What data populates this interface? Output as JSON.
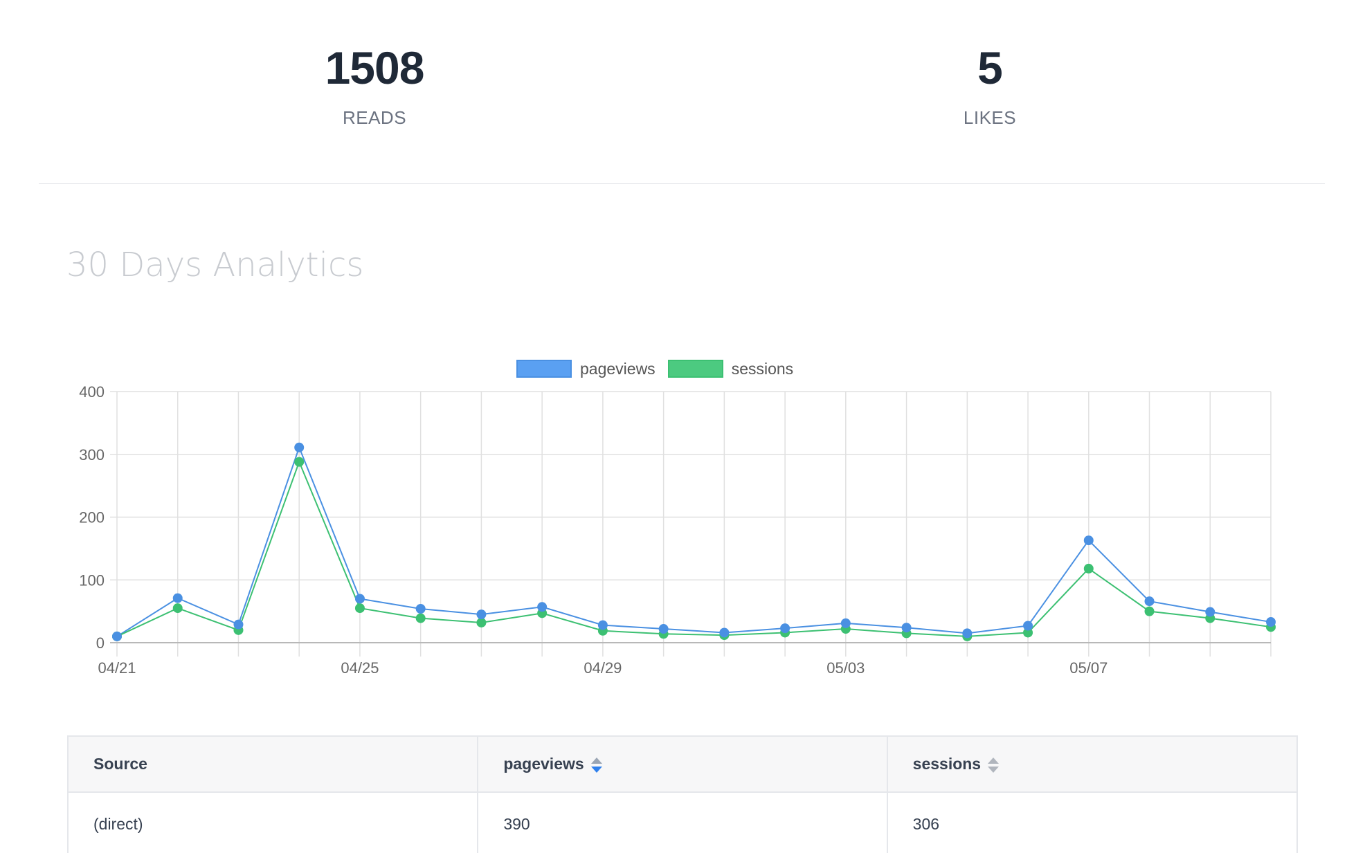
{
  "stats": {
    "reads": {
      "value": "1508",
      "label": "READS"
    },
    "likes": {
      "value": "5",
      "label": "LIKES"
    }
  },
  "section": {
    "title": "30 Days Analytics"
  },
  "chart_data": {
    "type": "line",
    "title": "",
    "xlabel": "",
    "ylabel": "",
    "ylim": [
      0,
      400
    ],
    "yticks": [
      0,
      100,
      200,
      300,
      400
    ],
    "grid": true,
    "legend_position": "top-center",
    "x": [
      "04/21",
      "04/22",
      "04/23",
      "04/24",
      "04/25",
      "04/26",
      "04/27",
      "04/28",
      "04/29",
      "04/30",
      "05/01",
      "05/02",
      "05/03",
      "05/04",
      "05/05",
      "05/06",
      "05/07",
      "05/08",
      "05/09",
      "05/10"
    ],
    "xtick_labels": [
      "04/21",
      "04/25",
      "04/29",
      "05/03",
      "05/07"
    ],
    "series": [
      {
        "name": "pageviews",
        "color": "#4a90e2",
        "fill": "#5aa0f2",
        "values": [
          10,
          71,
          29,
          311,
          70,
          54,
          45,
          57,
          28,
          22,
          16,
          23,
          31,
          24,
          15,
          27,
          163,
          66,
          49,
          33
        ]
      },
      {
        "name": "sessions",
        "color": "#3cc072",
        "fill": "#4cca80",
        "values": [
          10,
          55,
          20,
          288,
          55,
          39,
          32,
          47,
          19,
          14,
          12,
          16,
          22,
          15,
          10,
          16,
          118,
          50,
          39,
          25
        ]
      }
    ]
  },
  "table": {
    "headers": {
      "source": "Source",
      "pageviews": "pageviews",
      "sessions": "sessions"
    },
    "rows": [
      {
        "source": "(direct)",
        "pageviews": "390",
        "sessions": "306"
      }
    ]
  }
}
